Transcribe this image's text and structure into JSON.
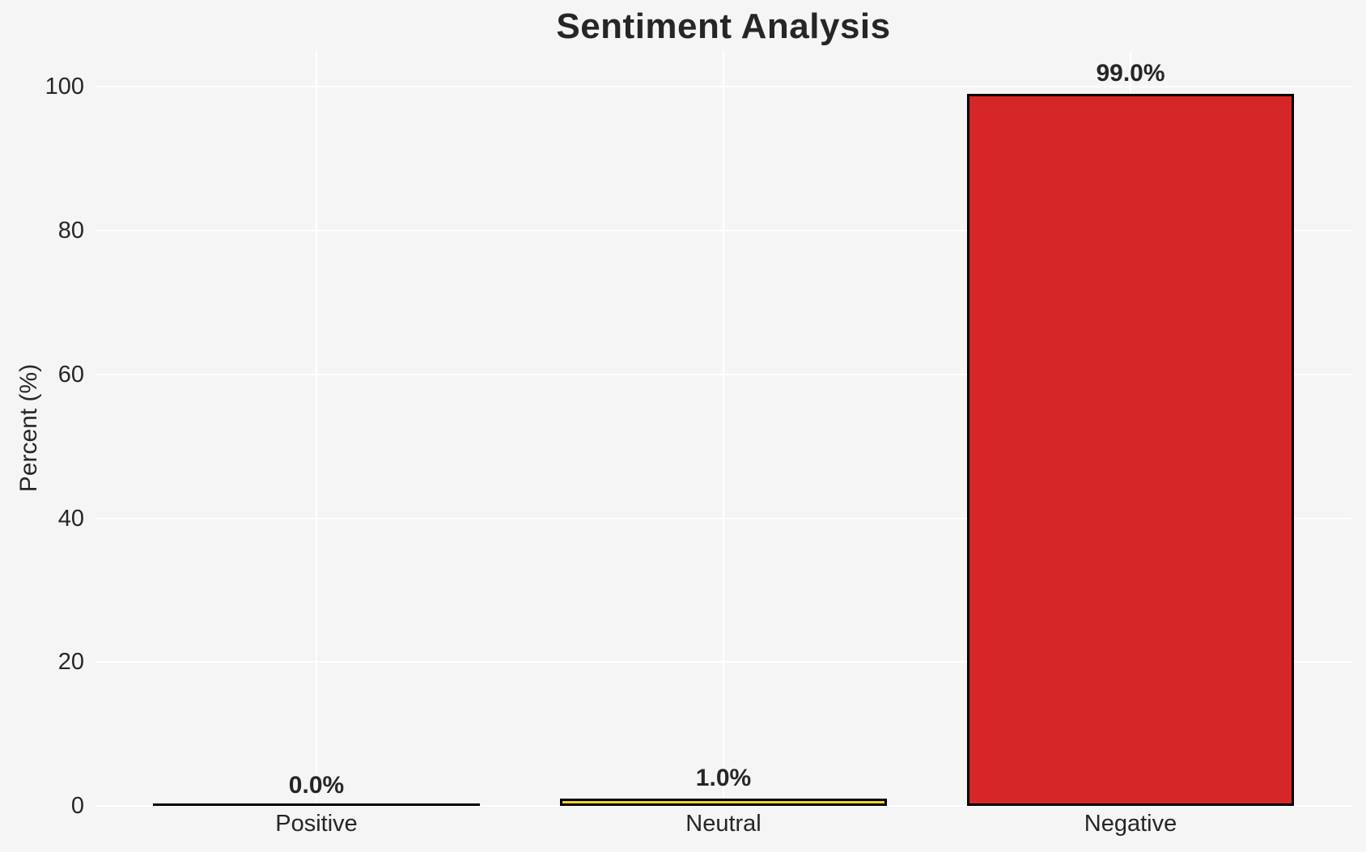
{
  "colors": {
    "background": "#f5f5f6",
    "gridline": "#ffffff",
    "text": "#262626",
    "bar_edge": "#000000",
    "neutral_bar_fill": "#f5d327",
    "negative_bar_fill": "#d62728"
  },
  "chart_data": {
    "type": "bar",
    "title": "Sentiment Analysis",
    "xlabel": "",
    "ylabel": "Percent (%)",
    "categories": [
      "Positive",
      "Neutral",
      "Negative"
    ],
    "values": [
      0.0,
      1.0,
      99.0
    ],
    "bar_labels": [
      "0.0%",
      "1.0%",
      "99.0%"
    ],
    "bar_colors": [
      null,
      "#f5d327",
      "#d62728"
    ],
    "bar_edge_color": "#000000",
    "ylim": [
      0,
      105
    ],
    "yticks": [
      0,
      20,
      40,
      60,
      80,
      100
    ],
    "grid": true,
    "grid_color": "#ffffff",
    "background_color": "#f5f5f6",
    "legend": "none"
  }
}
